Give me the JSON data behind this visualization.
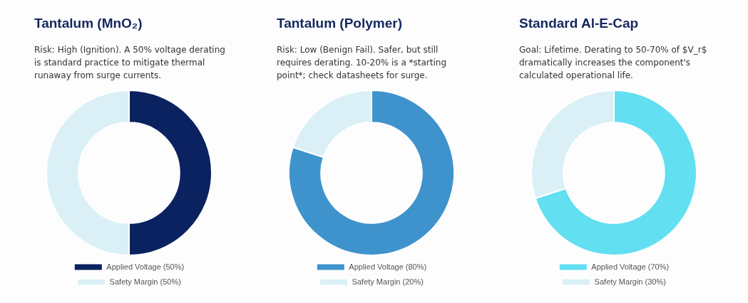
{
  "chart_data": [
    {
      "type": "donut",
      "title": "Tantalum (MnO₂)",
      "subtitle": "Risk: High (Ignition). A 50% voltage derating is standard practice to mitigate thermal runaway from surge currents.",
      "categories": [
        "Applied Voltage (50%)",
        "Safety Margin (50%)"
      ],
      "values": [
        50,
        50
      ],
      "colors": [
        "#0b2260",
        "#daf0f6"
      ],
      "legend": "bottom"
    },
    {
      "type": "donut",
      "title": "Tantalum (Polymer)",
      "subtitle": "Risk: Low (Benign Fail). Safer, but still requires derating. 10-20% is a *starting point*; check datasheets for surge.",
      "categories": [
        "Applied Voltage (80%)",
        "Safety Margin (20%)"
      ],
      "values": [
        80,
        20
      ],
      "colors": [
        "#3f93cc",
        "#daf0f6"
      ],
      "legend": "bottom"
    },
    {
      "type": "donut",
      "title": "Standard Al-E-Cap",
      "subtitle": "Goal: Lifetime. Derating to 50-70% of $V_r$ dramatically increases the component's calculated operational life.",
      "categories": [
        "Applied Voltage (70%)",
        "Safety Margin (30%)"
      ],
      "values": [
        70,
        30
      ],
      "colors": [
        "#62dff0",
        "#daf0f6"
      ],
      "legend": "bottom"
    }
  ]
}
